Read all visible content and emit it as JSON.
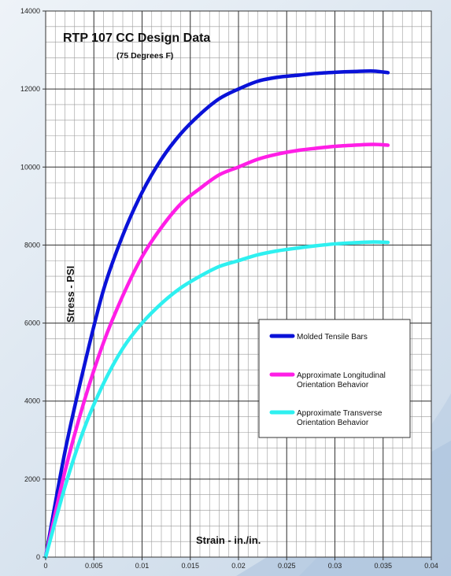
{
  "chart_data": {
    "type": "line",
    "title": "RTP 107 CC Design Data",
    "subtitle": "(75 Degrees F)",
    "xlabel": "Strain - in./in.",
    "ylabel": "Stress - PSI",
    "xlim": [
      0,
      0.04
    ],
    "ylim": [
      0,
      14000
    ],
    "x_ticks": [
      0,
      0.005,
      0.01,
      0.015,
      0.02,
      0.025,
      0.03,
      0.035,
      0.04
    ],
    "x_tick_labels": [
      "0",
      "0.005",
      "0.01",
      "0.015",
      "0.02",
      "0.025",
      "0.03",
      "0.035",
      "0.04"
    ],
    "y_ticks": [
      0,
      2000,
      4000,
      6000,
      8000,
      10000,
      12000,
      14000
    ],
    "y_tick_labels": [
      "0",
      "2000",
      "4000",
      "6000",
      "8000",
      "10000",
      "12000",
      "14000"
    ],
    "x_minor_step": 0.001,
    "y_minor_step": 400,
    "grid": true,
    "legend_position": "right-middle",
    "series": [
      {
        "name": "Molded Tensile Bars",
        "color": "#0a12d8",
        "points": [
          [
            0,
            0
          ],
          [
            0.002,
            2700
          ],
          [
            0.004,
            4900
          ],
          [
            0.006,
            6850
          ],
          [
            0.008,
            8250
          ],
          [
            0.01,
            9350
          ],
          [
            0.012,
            10200
          ],
          [
            0.014,
            10850
          ],
          [
            0.016,
            11350
          ],
          [
            0.018,
            11750
          ],
          [
            0.02,
            12000
          ],
          [
            0.022,
            12200
          ],
          [
            0.024,
            12300
          ],
          [
            0.026,
            12350
          ],
          [
            0.028,
            12400
          ],
          [
            0.03,
            12430
          ],
          [
            0.032,
            12450
          ],
          [
            0.034,
            12460
          ],
          [
            0.0355,
            12420
          ]
        ]
      },
      {
        "name": "Approximate Longitudinal Orientation Behavior",
        "color": "#ff1ee6",
        "points": [
          [
            0,
            0
          ],
          [
            0.002,
            2200
          ],
          [
            0.004,
            4000
          ],
          [
            0.006,
            5500
          ],
          [
            0.008,
            6700
          ],
          [
            0.01,
            7700
          ],
          [
            0.012,
            8450
          ],
          [
            0.014,
            9050
          ],
          [
            0.016,
            9450
          ],
          [
            0.018,
            9800
          ],
          [
            0.02,
            10000
          ],
          [
            0.022,
            10200
          ],
          [
            0.024,
            10330
          ],
          [
            0.026,
            10420
          ],
          [
            0.028,
            10480
          ],
          [
            0.03,
            10530
          ],
          [
            0.032,
            10560
          ],
          [
            0.034,
            10580
          ],
          [
            0.0355,
            10560
          ]
        ]
      },
      {
        "name": "Approximate Transverse Orientation Behavior",
        "color": "#2ef0f0",
        "points": [
          [
            0,
            0
          ],
          [
            0.002,
            1800
          ],
          [
            0.004,
            3300
          ],
          [
            0.006,
            4450
          ],
          [
            0.008,
            5350
          ],
          [
            0.01,
            6000
          ],
          [
            0.012,
            6500
          ],
          [
            0.014,
            6900
          ],
          [
            0.016,
            7200
          ],
          [
            0.018,
            7450
          ],
          [
            0.02,
            7600
          ],
          [
            0.022,
            7750
          ],
          [
            0.024,
            7850
          ],
          [
            0.026,
            7920
          ],
          [
            0.028,
            7980
          ],
          [
            0.03,
            8030
          ],
          [
            0.032,
            8060
          ],
          [
            0.034,
            8080
          ],
          [
            0.0355,
            8070
          ]
        ]
      }
    ]
  }
}
